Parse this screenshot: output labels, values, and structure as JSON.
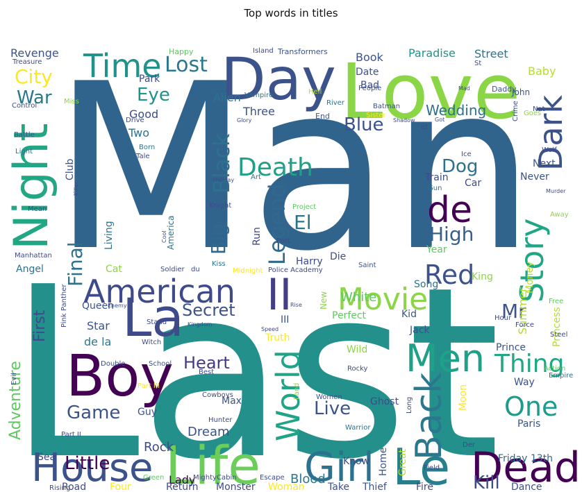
{
  "chart_data": {
    "type": "wordcloud",
    "title": "Top words in titles",
    "colormap": "viridis",
    "words": [
      {
        "text": "Man",
        "color": "#31648d"
      },
      {
        "text": "Last",
        "color": "#23908c"
      },
      {
        "text": "Love",
        "color": "#8bd646"
      },
      {
        "text": "Day",
        "color": "#3b528b"
      },
      {
        "text": "Life",
        "color": "#6ccd5a"
      },
      {
        "text": "Night",
        "color": "#22a785"
      },
      {
        "text": "Boy",
        "color": "#440154"
      },
      {
        "text": "La",
        "color": "#3e4a89"
      },
      {
        "text": "Le",
        "color": "#277f8e"
      },
      {
        "text": "Dead",
        "color": "#440154"
      },
      {
        "text": "House",
        "color": "#3b528b"
      },
      {
        "text": "Girl",
        "color": "#2c728e"
      },
      {
        "text": "Time",
        "color": "#21918c"
      },
      {
        "text": "Men",
        "color": "#1fa088"
      },
      {
        "text": "American",
        "color": "#3e4a89"
      },
      {
        "text": "II",
        "color": "#433e85"
      },
      {
        "text": "Movie",
        "color": "#8bd646"
      },
      {
        "text": "Story",
        "color": "#21a685"
      },
      {
        "text": "Back",
        "color": "#2a788e"
      },
      {
        "text": "World",
        "color": "#20a386"
      },
      {
        "text": "de",
        "color": "#440154"
      },
      {
        "text": "One",
        "color": "#1e9b8a"
      },
      {
        "text": "Red",
        "color": "#3b528b"
      },
      {
        "text": "Dark",
        "color": "#3b528b"
      },
      {
        "text": "Death",
        "color": "#1fa088"
      },
      {
        "text": "Black",
        "color": "#2c728e"
      },
      {
        "text": "Legend",
        "color": "#31688e"
      },
      {
        "text": "Thing",
        "color": "#22a785"
      },
      {
        "text": "Heart",
        "color": "#443983"
      },
      {
        "text": "Secret",
        "color": "#3b528b"
      },
      {
        "text": "Lost",
        "color": "#2a788e"
      },
      {
        "text": "Blue",
        "color": "#3b528b"
      },
      {
        "text": "High",
        "color": "#35608d"
      },
      {
        "text": "Adventure",
        "color": "#5ec962"
      },
      {
        "text": "First",
        "color": "#3e4a89"
      },
      {
        "text": "Little",
        "color": "#440154"
      },
      {
        "text": "Big",
        "color": "#31688e"
      },
      {
        "text": "City",
        "color": "#fde725"
      },
      {
        "text": "War",
        "color": "#2a788e"
      },
      {
        "text": "Eye",
        "color": "#21918c"
      },
      {
        "text": "Live",
        "color": "#3b528b"
      },
      {
        "text": "Game",
        "color": "#3b528b"
      },
      {
        "text": "Kill",
        "color": "#3e4a89"
      },
      {
        "text": "Dog",
        "color": "#2c728e"
      },
      {
        "text": "Mr",
        "color": "#3b528b"
      },
      {
        "text": "El",
        "color": "#2c728e"
      },
      {
        "text": "Final",
        "color": "#2c728e"
      },
      {
        "text": "White",
        "color": "#5ec962"
      },
      {
        "text": "Wedding",
        "color": "#2c728e"
      },
      {
        "text": "Blood",
        "color": "#2a788e"
      },
      {
        "text": "Rock",
        "color": "#3e4a89"
      },
      {
        "text": "Dream",
        "color": "#3b528b"
      },
      {
        "text": "Summer",
        "color": "#b5de2b"
      },
      {
        "text": "Revenge",
        "color": "#3b528b"
      },
      {
        "text": "Paradise",
        "color": "#21918c"
      },
      {
        "text": "Street",
        "color": "#2c728e"
      },
      {
        "text": "Baby",
        "color": "#b5de2b"
      },
      {
        "text": "Book",
        "color": "#3b528b"
      },
      {
        "text": "Good",
        "color": "#3e4a89"
      },
      {
        "text": "Two",
        "color": "#2c728e"
      },
      {
        "text": "Alien",
        "color": "#2c728e"
      },
      {
        "text": "Three",
        "color": "#3b528b"
      },
      {
        "text": "Park",
        "color": "#3e4a89"
      },
      {
        "text": "Date",
        "color": "#3b528b"
      },
      {
        "text": "Bad",
        "color": "#3e4a89"
      },
      {
        "text": "Club",
        "color": "#3b528b"
      },
      {
        "text": "Angel",
        "color": "#2c728e"
      },
      {
        "text": "Queen",
        "color": "#3b528b"
      },
      {
        "text": "Star",
        "color": "#3b528b"
      },
      {
        "text": "de la",
        "color": "#2a788e"
      },
      {
        "text": "Cat",
        "color": "#8bd646"
      },
      {
        "text": "Guy",
        "color": "#3b528b"
      },
      {
        "text": "Lady",
        "color": "#440154"
      },
      {
        "text": "Road",
        "color": "#3e4a89"
      },
      {
        "text": "Four",
        "color": "#fde725"
      },
      {
        "text": "Return",
        "color": "#3e4a89"
      },
      {
        "text": "Monster",
        "color": "#3e4a89"
      },
      {
        "text": "Woman",
        "color": "#fde725"
      },
      {
        "text": "Take",
        "color": "#3b528b"
      },
      {
        "text": "Thief",
        "color": "#3b528b"
      },
      {
        "text": "Fire",
        "color": "#3e4a89"
      },
      {
        "text": "Dance",
        "color": "#3b528b"
      },
      {
        "text": "Friday 13th",
        "color": "#31688e"
      },
      {
        "text": "Paris",
        "color": "#3b528b"
      },
      {
        "text": "Way",
        "color": "#3b528b"
      },
      {
        "text": "Prince",
        "color": "#3b528b"
      },
      {
        "text": "Princess",
        "color": "#b5de2b"
      },
      {
        "text": "Song",
        "color": "#2c728e"
      },
      {
        "text": "King",
        "color": "#8bd646"
      },
      {
        "text": "Money",
        "color": "#b5de2b"
      },
      {
        "text": "Never",
        "color": "#3b528b"
      },
      {
        "text": "Next",
        "color": "#3b528b"
      },
      {
        "text": "Train",
        "color": "#3e4a89"
      },
      {
        "text": "Car",
        "color": "#3e4a89"
      },
      {
        "text": "Jack",
        "color": "#3b528b"
      },
      {
        "text": "Kid",
        "color": "#3b528b"
      },
      {
        "text": "Perfect",
        "color": "#5ec962"
      },
      {
        "text": "Truth",
        "color": "#fde725"
      },
      {
        "text": "III",
        "color": "#3b528b"
      },
      {
        "text": "Ghost",
        "color": "#3e4a89"
      },
      {
        "text": "Wild",
        "color": "#8bd646"
      },
      {
        "text": "Max",
        "color": "#3b528b"
      },
      {
        "text": "Harry",
        "color": "#3e4a89"
      },
      {
        "text": "Die",
        "color": "#3e4a89"
      },
      {
        "text": "Run",
        "color": "#3e4a89"
      },
      {
        "text": "Home",
        "color": "#3b528b"
      },
      {
        "text": "Great",
        "color": "#b5de2b"
      },
      {
        "text": "Know",
        "color": "#3e4a89"
      },
      {
        "text": "Sea",
        "color": "#3e4a89"
      },
      {
        "text": "Moon",
        "color": "#fde725"
      },
      {
        "text": "Year",
        "color": "#5ec962"
      },
      {
        "text": "Living",
        "color": "#2c728e"
      },
      {
        "text": "America",
        "color": "#2c728e"
      },
      {
        "text": "New",
        "color": "#8bd646"
      },
      {
        "text": "John",
        "color": "#3b528b"
      },
      {
        "text": "Daddy",
        "color": "#3b528b"
      },
      {
        "text": "People",
        "color": "#3b528b"
      },
      {
        "text": "Transformers",
        "color": "#3b528b"
      },
      {
        "text": "Happy",
        "color": "#5ec962"
      },
      {
        "text": "Batman",
        "color": "#3b528b"
      },
      {
        "text": "End",
        "color": "#3b528b"
      },
      {
        "text": "Light",
        "color": "#2c728e"
      },
      {
        "text": "Battle",
        "color": "#3b528b"
      },
      {
        "text": "Miss",
        "color": "#8bd646"
      },
      {
        "text": "Drive",
        "color": "#3e4a89"
      },
      {
        "text": "Born",
        "color": "#2a788e"
      },
      {
        "text": "Tale",
        "color": "#3e4a89"
      },
      {
        "text": "Knight",
        "color": "#3e4a89"
      },
      {
        "text": "Project",
        "color": "#5ec962"
      },
      {
        "text": "Art",
        "color": "#2c728e"
      },
      {
        "text": "Mean",
        "color": "#3e4a89"
      },
      {
        "text": "Gun",
        "color": "#2c728e"
      },
      {
        "text": "Away",
        "color": "#8bd646"
      },
      {
        "text": "Soldier",
        "color": "#3e4a89"
      },
      {
        "text": "du",
        "color": "#3e4a89"
      },
      {
        "text": "Midnight",
        "color": "#fde725"
      },
      {
        "text": "Police Academy",
        "color": "#3e4a89"
      },
      {
        "text": "Kiss",
        "color": "#2c728e"
      },
      {
        "text": "Saint",
        "color": "#3b528b"
      },
      {
        "text": "Part",
        "color": "#3e4a89"
      },
      {
        "text": "Women",
        "color": "#3b528b"
      },
      {
        "text": "Hunter",
        "color": "#3e4a89"
      },
      {
        "text": "Warrior",
        "color": "#2c728e"
      },
      {
        "text": "Land",
        "color": "#8bd646"
      },
      {
        "text": "Rocky",
        "color": "#3e4a89"
      },
      {
        "text": "School",
        "color": "#3b528b"
      },
      {
        "text": "Double",
        "color": "#3e4a89"
      },
      {
        "text": "Best",
        "color": "#3e4a89"
      },
      {
        "text": "Escape",
        "color": "#3e4a89"
      },
      {
        "text": "Mighty",
        "color": "#3e4a89"
      },
      {
        "text": "Evil",
        "color": "#3e4a89"
      },
      {
        "text": "Force",
        "color": "#3e4a89"
      },
      {
        "text": "Hour",
        "color": "#3e4a89"
      },
      {
        "text": "Crime",
        "color": "#3e4a89"
      },
      {
        "text": "Sister",
        "color": "#fde725"
      },
      {
        "text": "Hell",
        "color": "#b5de2b"
      },
      {
        "text": "River",
        "color": "#2c728e"
      },
      {
        "text": "Vampire",
        "color": "#2c728e"
      },
      {
        "text": "Goes",
        "color": "#8bd646"
      },
      {
        "text": "Empire",
        "color": "#2c728e"
      },
      {
        "text": "Long",
        "color": "#3e4a89"
      },
      {
        "text": "Witch",
        "color": "#3e4a89"
      },
      {
        "text": "Stand",
        "color": "#3e4a89"
      },
      {
        "text": "Pink Panther",
        "color": "#3e4a89"
      },
      {
        "text": "Part II",
        "color": "#3e4a89"
      },
      {
        "text": "Part III",
        "color": "#fde725"
      },
      {
        "text": "Cowboys",
        "color": "#3e4a89"
      },
      {
        "text": "Der",
        "color": "#3e4a89"
      },
      {
        "text": "Field",
        "color": "#3e4a89"
      },
      {
        "text": "Cabin",
        "color": "#3e4a89"
      },
      {
        "text": "Green",
        "color": "#5ec962"
      },
      {
        "text": "Rising",
        "color": "#3e4a89"
      },
      {
        "text": "Treasure",
        "color": "#3e4a89"
      },
      {
        "text": "Island",
        "color": "#3e4a89"
      },
      {
        "text": "Control",
        "color": "#3e4a89"
      },
      {
        "text": "Manhattan",
        "color": "#3e4a89"
      },
      {
        "text": "Action",
        "color": "#5ec962"
      },
      {
        "text": "Steel",
        "color": "#3e4a89"
      },
      {
        "text": "Free",
        "color": "#5ec962"
      },
      {
        "text": "Nat",
        "color": "#3e4a89"
      },
      {
        "text": "Wolf",
        "color": "#3e4a89"
      },
      {
        "text": "Holiday",
        "color": "#3e4a89"
      },
      {
        "text": "Glory",
        "color": "#3e4a89"
      },
      {
        "text": "Shadow",
        "color": "#3e4a89"
      },
      {
        "text": "Ice",
        "color": "#3e4a89"
      },
      {
        "text": "et",
        "color": "#3e4a89"
      },
      {
        "text": "Got",
        "color": "#3e4a89"
      },
      {
        "text": "St",
        "color": "#3e4a89"
      },
      {
        "text": "Mad",
        "color": "#3e4a89"
      },
      {
        "text": "Killer",
        "color": "#3e4a89"
      },
      {
        "text": "Murder",
        "color": "#3e4a89"
      },
      {
        "text": "Speed",
        "color": "#3e4a89"
      },
      {
        "text": "Rise",
        "color": "#3e4a89"
      },
      {
        "text": "Kingdom",
        "color": "#3e4a89"
      },
      {
        "text": "Cool",
        "color": "#3e4a89"
      },
      {
        "text": "Enemy",
        "color": "#3e4a89"
      }
    ]
  }
}
